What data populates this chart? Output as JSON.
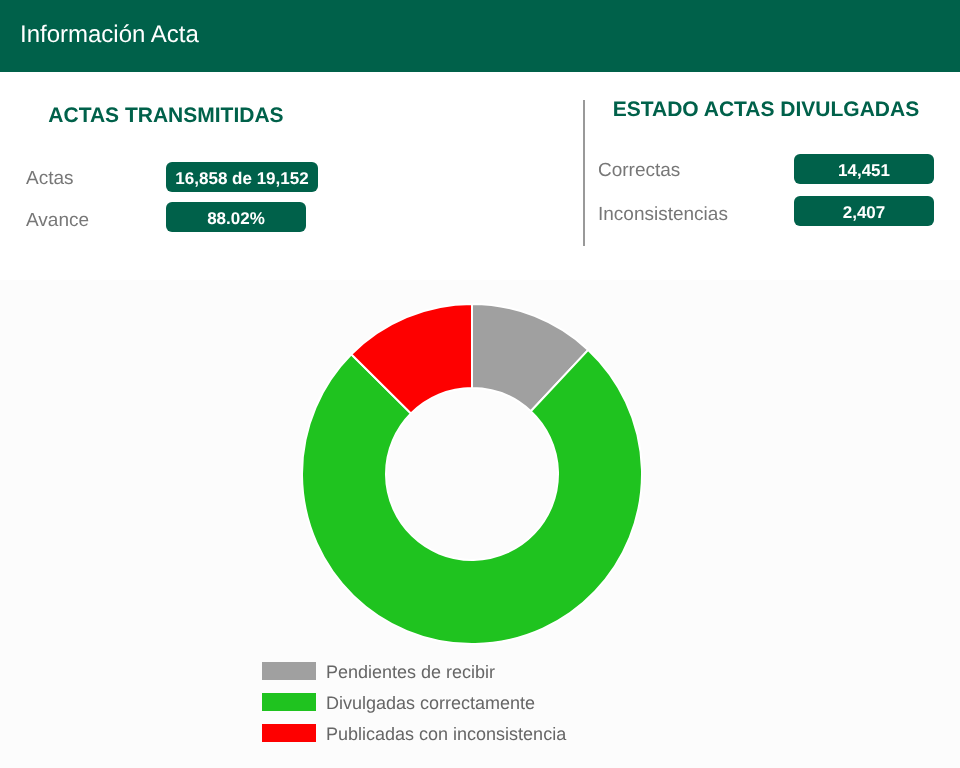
{
  "chart_data": [
    {
      "type": "other",
      "title": "Información Acta",
      "annotations": [
        "ACTAS TRANSMITIDAS",
        "Actas",
        "16,858 de 19,152",
        "Avance",
        "88.02%",
        "ESTADO ACTAS DIVULGADAS",
        "Correctas",
        "14,451",
        "Inconsistencias",
        "2,407"
      ]
    },
    {
      "type": "donut",
      "categories": [
        "Pendientes de recibir",
        "Divulgadas correctamente",
        "Publicadas con inconsistencia"
      ],
      "values": [
        11.98,
        75.45,
        12.57
      ],
      "colors": [
        "#a0a0a0",
        "#1fc31f",
        "#fe0000"
      ],
      "legend": "bottom"
    }
  ]
}
